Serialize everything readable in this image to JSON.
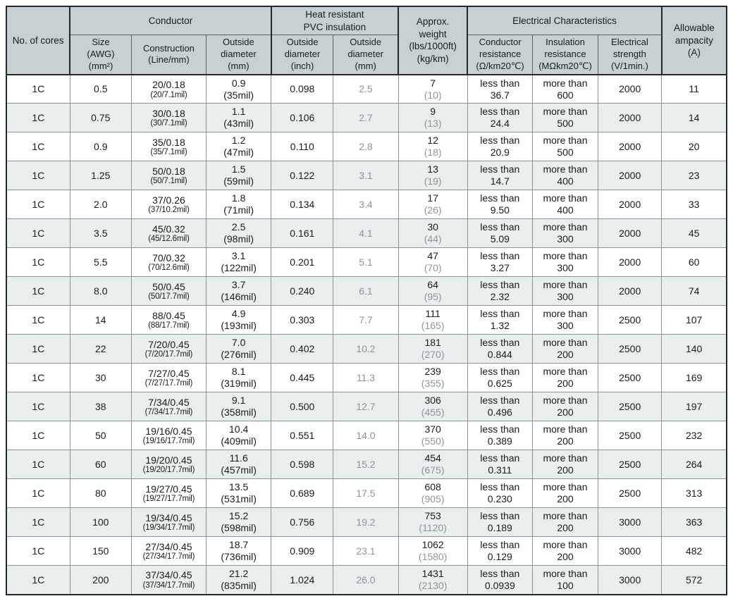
{
  "colors": {
    "header_bg": "#c7d1d4",
    "row_alt_bg": "#e9eeee",
    "dim_text": "#8d9498",
    "border_dark": "#222a2b",
    "border_light": "#8d9494"
  },
  "table": {
    "header": {
      "no_of_cores": "No. of cores",
      "groups": {
        "conductor": "Conductor",
        "insulation": [
          "Heat resistant",
          "PVC insulation"
        ],
        "electrical": "Electrical Characteristics"
      },
      "approx_weight": [
        "Approx.",
        "weight",
        "(lbs/1000ft)",
        "(kg/km)"
      ],
      "allowable_ampacity": [
        "Allowable",
        "ampacity",
        "(A)"
      ],
      "size": [
        "Size",
        "(AWG)",
        "(mm²)"
      ],
      "construction": [
        "Construction",
        "(Line/mm)"
      ],
      "conductor_od": [
        "Outside",
        "diameter",
        "(mm)"
      ],
      "insulation_od_inch": [
        "Outside",
        "diameter",
        "(inch)"
      ],
      "insulation_od_mm": [
        "Outside",
        "diameter",
        "(mm)"
      ],
      "conductor_resistance": [
        "Conductor",
        "resistance",
        "(Ω/km20℃)"
      ],
      "insulation_resistance": [
        "Insulation",
        "resistance",
        "(MΩkm20℃)"
      ],
      "electrical_strength": [
        "Electrical",
        "strength",
        "(V/1min.)"
      ]
    },
    "rows": [
      {
        "cores": "1C",
        "size": "0.5",
        "construction": [
          "20/0.18",
          "(20/7.1mil)"
        ],
        "conductor_od_mm": [
          "0.9",
          "(35mil)"
        ],
        "insulation_od_inch": "0.098",
        "insulation_od_mm": "2.5",
        "weight": [
          "7",
          "(10)"
        ],
        "conductor_resistance": [
          "less than",
          "36.7"
        ],
        "insulation_resistance": [
          "more than",
          "600"
        ],
        "electrical_strength": "2000",
        "ampacity": "11"
      },
      {
        "cores": "1C",
        "size": "0.75",
        "construction": [
          "30/0.18",
          "(30/7.1mil)"
        ],
        "conductor_od_mm": [
          "1.1",
          "(43mil)"
        ],
        "insulation_od_inch": "0.106",
        "insulation_od_mm": "2.7",
        "weight": [
          "9",
          "(13)"
        ],
        "conductor_resistance": [
          "less than",
          "24.4"
        ],
        "insulation_resistance": [
          "more than",
          "500"
        ],
        "electrical_strength": "2000",
        "ampacity": "14"
      },
      {
        "cores": "1C",
        "size": "0.9",
        "construction": [
          "35/0.18",
          "(35/7.1mil)"
        ],
        "conductor_od_mm": [
          "1.2",
          "(47mil)"
        ],
        "insulation_od_inch": "0.110",
        "insulation_od_mm": "2.8",
        "weight": [
          "12",
          "(18)"
        ],
        "conductor_resistance": [
          "less than",
          "20.9"
        ],
        "insulation_resistance": [
          "more than",
          "500"
        ],
        "electrical_strength": "2000",
        "ampacity": "20"
      },
      {
        "cores": "1C",
        "size": "1.25",
        "construction": [
          "50/0.18",
          "(50/7.1mil)"
        ],
        "conductor_od_mm": [
          "1.5",
          "(59mil)"
        ],
        "insulation_od_inch": "0.122",
        "insulation_od_mm": "3.1",
        "weight": [
          "13",
          "(19)"
        ],
        "conductor_resistance": [
          "less than",
          "14.7"
        ],
        "insulation_resistance": [
          "more than",
          "400"
        ],
        "electrical_strength": "2000",
        "ampacity": "23"
      },
      {
        "cores": "1C",
        "size": "2.0",
        "construction": [
          "37/0.26",
          "(37/10.2mil)"
        ],
        "conductor_od_mm": [
          "1.8",
          "(71mil)"
        ],
        "insulation_od_inch": "0.134",
        "insulation_od_mm": "3.4",
        "weight": [
          "17",
          "(26)"
        ],
        "conductor_resistance": [
          "less than",
          "9.50"
        ],
        "insulation_resistance": [
          "more than",
          "400"
        ],
        "electrical_strength": "2000",
        "ampacity": "33"
      },
      {
        "cores": "1C",
        "size": "3.5",
        "construction": [
          "45/0.32",
          "(45/12.6mil)"
        ],
        "conductor_od_mm": [
          "2.5",
          "(98mil)"
        ],
        "insulation_od_inch": "0.161",
        "insulation_od_mm": "4.1",
        "weight": [
          "30",
          "(44)"
        ],
        "conductor_resistance": [
          "less than",
          "5.09"
        ],
        "insulation_resistance": [
          "more than",
          "300"
        ],
        "electrical_strength": "2000",
        "ampacity": "45"
      },
      {
        "cores": "1C",
        "size": "5.5",
        "construction": [
          "70/0.32",
          "(70/12.6mil)"
        ],
        "conductor_od_mm": [
          "3.1",
          "(122mil)"
        ],
        "insulation_od_inch": "0.201",
        "insulation_od_mm": "5.1",
        "weight": [
          "47",
          "(70)"
        ],
        "conductor_resistance": [
          "less than",
          "3.27"
        ],
        "insulation_resistance": [
          "more than",
          "300"
        ],
        "electrical_strength": "2000",
        "ampacity": "60"
      },
      {
        "cores": "1C",
        "size": "8.0",
        "construction": [
          "50/0.45",
          "(50/17.7mil)"
        ],
        "conductor_od_mm": [
          "3.7",
          "(146mil)"
        ],
        "insulation_od_inch": "0.240",
        "insulation_od_mm": "6.1",
        "weight": [
          "64",
          "(95)"
        ],
        "conductor_resistance": [
          "less than",
          "2.32"
        ],
        "insulation_resistance": [
          "more than",
          "300"
        ],
        "electrical_strength": "2000",
        "ampacity": "74"
      },
      {
        "cores": "1C",
        "size": "14",
        "construction": [
          "88/0.45",
          "(88/17.7mil)"
        ],
        "conductor_od_mm": [
          "4.9",
          "(193mil)"
        ],
        "insulation_od_inch": "0.303",
        "insulation_od_mm": "7.7",
        "weight": [
          "111",
          "(165)"
        ],
        "conductor_resistance": [
          "less than",
          "1.32"
        ],
        "insulation_resistance": [
          "more than",
          "300"
        ],
        "electrical_strength": "2500",
        "ampacity": "107"
      },
      {
        "cores": "1C",
        "size": "22",
        "construction": [
          "7/20/0.45",
          "(7/20/17.7mil)"
        ],
        "conductor_od_mm": [
          "7.0",
          "(276mil)"
        ],
        "insulation_od_inch": "0.402",
        "insulation_od_mm": "10.2",
        "weight": [
          "181",
          "(270)"
        ],
        "conductor_resistance": [
          "less than",
          "0.844"
        ],
        "insulation_resistance": [
          "more than",
          "200"
        ],
        "electrical_strength": "2500",
        "ampacity": "140"
      },
      {
        "cores": "1C",
        "size": "30",
        "construction": [
          "7/27/0.45",
          "(7/27/17.7mil)"
        ],
        "conductor_od_mm": [
          "8.1",
          "(319mil)"
        ],
        "insulation_od_inch": "0.445",
        "insulation_od_mm": "11.3",
        "weight": [
          "239",
          "(355)"
        ],
        "conductor_resistance": [
          "less than",
          "0.625"
        ],
        "insulation_resistance": [
          "more than",
          "200"
        ],
        "electrical_strength": "2500",
        "ampacity": "169"
      },
      {
        "cores": "1C",
        "size": "38",
        "construction": [
          "7/34/0.45",
          "(7/34/17.7mil)"
        ],
        "conductor_od_mm": [
          "9.1",
          "(358mil)"
        ],
        "insulation_od_inch": "0.500",
        "insulation_od_mm": "12.7",
        "weight": [
          "306",
          "(455)"
        ],
        "conductor_resistance": [
          "less than",
          "0.496"
        ],
        "insulation_resistance": [
          "more than",
          "200"
        ],
        "electrical_strength": "2500",
        "ampacity": "197"
      },
      {
        "cores": "1C",
        "size": "50",
        "construction": [
          "19/16/0.45",
          "(19/16/17.7mil)"
        ],
        "conductor_od_mm": [
          "10.4",
          "(409mil)"
        ],
        "insulation_od_inch": "0.551",
        "insulation_od_mm": "14.0",
        "weight": [
          "370",
          "(550)"
        ],
        "conductor_resistance": [
          "less than",
          "0.389"
        ],
        "insulation_resistance": [
          "more than",
          "200"
        ],
        "electrical_strength": "2500",
        "ampacity": "232"
      },
      {
        "cores": "1C",
        "size": "60",
        "construction": [
          "19/20/0.45",
          "(19/20/17.7mil)"
        ],
        "conductor_od_mm": [
          "11.6",
          "(457mil)"
        ],
        "insulation_od_inch": "0.598",
        "insulation_od_mm": "15.2",
        "weight": [
          "454",
          "(675)"
        ],
        "conductor_resistance": [
          "less than",
          "0.311"
        ],
        "insulation_resistance": [
          "more than",
          "200"
        ],
        "electrical_strength": "2500",
        "ampacity": "264"
      },
      {
        "cores": "1C",
        "size": "80",
        "construction": [
          "19/27/0.45",
          "(19/27/17.7mil)"
        ],
        "conductor_od_mm": [
          "13.5",
          "(531mil)"
        ],
        "insulation_od_inch": "0.689",
        "insulation_od_mm": "17.5",
        "weight": [
          "608",
          "(905)"
        ],
        "conductor_resistance": [
          "less than",
          "0.230"
        ],
        "insulation_resistance": [
          "more than",
          "200"
        ],
        "electrical_strength": "2500",
        "ampacity": "313"
      },
      {
        "cores": "1C",
        "size": "100",
        "construction": [
          "19/34/0.45",
          "(19/34/17.7mil)"
        ],
        "conductor_od_mm": [
          "15.2",
          "(598mil)"
        ],
        "insulation_od_inch": "0.756",
        "insulation_od_mm": "19.2",
        "weight": [
          "753",
          "(1120)"
        ],
        "conductor_resistance": [
          "less than",
          "0.189"
        ],
        "insulation_resistance": [
          "more than",
          "200"
        ],
        "electrical_strength": "3000",
        "ampacity": "363"
      },
      {
        "cores": "1C",
        "size": "150",
        "construction": [
          "27/34/0.45",
          "(27/34/17.7mil)"
        ],
        "conductor_od_mm": [
          "18.7",
          "(736mil)"
        ],
        "insulation_od_inch": "0.909",
        "insulation_od_mm": "23.1",
        "weight": [
          "1062",
          "(1580)"
        ],
        "conductor_resistance": [
          "less than",
          "0.129"
        ],
        "insulation_resistance": [
          "more than",
          "200"
        ],
        "electrical_strength": "3000",
        "ampacity": "482"
      },
      {
        "cores": "1C",
        "size": "200",
        "construction": [
          "37/34/0.45",
          "(37/34/17.7mil)"
        ],
        "conductor_od_mm": [
          "21.2",
          "(835mil)"
        ],
        "insulation_od_inch": "1.024",
        "insulation_od_mm": "26.0",
        "weight": [
          "1431",
          "(2130)"
        ],
        "conductor_resistance": [
          "less than",
          "0.0939"
        ],
        "insulation_resistance": [
          "more than",
          "100"
        ],
        "electrical_strength": "3000",
        "ampacity": "572"
      }
    ]
  }
}
